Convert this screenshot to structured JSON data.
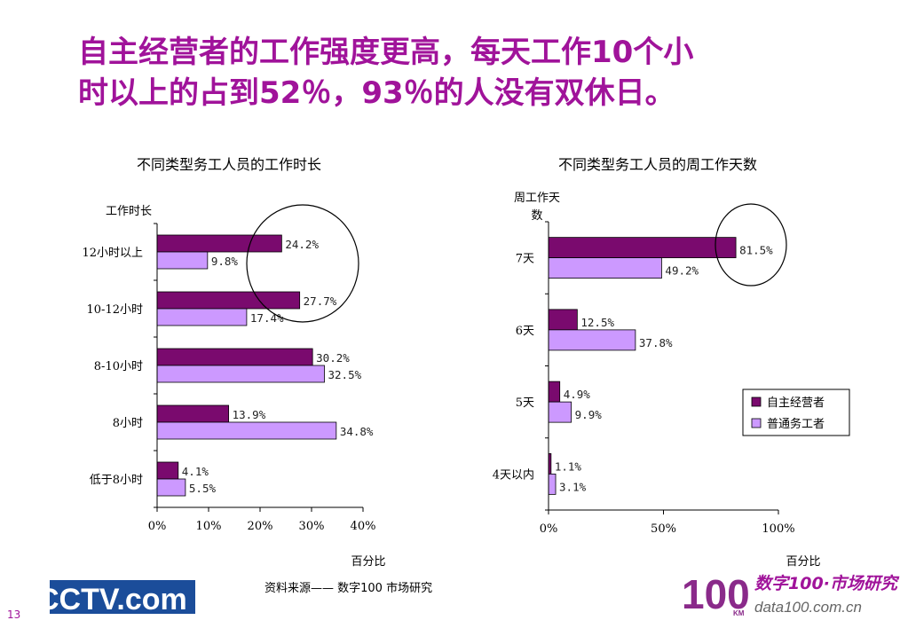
{
  "slide": {
    "title_line1": "自主经营者的工作强度更高，每天工作10个小",
    "title_line2": "时以上的占到52％，93％的人没有双休日。",
    "source_text": "资料来源——  数字100   市场研究",
    "page_number": "13",
    "accent_color": "#a0139a"
  },
  "logos": {
    "cctv_text": "CCTV.com",
    "data100_brand": "数字100·市场研究",
    "data100_num": "100",
    "data100_km": "KM",
    "data100_url": "data100.com.cn"
  },
  "chart_data": [
    {
      "type": "bar",
      "orientation": "horizontal",
      "title": "不同类型务工人员的工作时长",
      "ylabel": "工作时长",
      "xlabel": "百分比",
      "categories": [
        "12小时以上",
        "10-12小时",
        "8-10小时",
        "8小时",
        "低于8小时"
      ],
      "series": [
        {
          "name": "自主经营者",
          "color": "#7a0a6e",
          "values": [
            24.2,
            27.7,
            30.2,
            13.9,
            4.1
          ],
          "labels": [
            "24.2%",
            "27.7%",
            "30.2%",
            "13.9%",
            "4.1%"
          ]
        },
        {
          "name": "普通务工者",
          "color": "#cc99ff",
          "values": [
            9.8,
            17.4,
            32.5,
            34.8,
            5.5
          ],
          "labels": [
            "9.8%",
            "17.4%",
            "32.5%",
            "34.8%",
            "5.5%"
          ]
        }
      ],
      "xlim": [
        0,
        40
      ],
      "xticks": [
        "0%",
        "10%",
        "20%",
        "30%",
        "40%"
      ],
      "xtick_values": [
        0,
        10,
        20,
        30,
        40
      ],
      "highlight": {
        "category": "12小时以上",
        "shape": "circle"
      }
    },
    {
      "type": "bar",
      "orientation": "horizontal",
      "title": "不同类型务工人员的周工作天数",
      "ylabel": "周工作天数",
      "ylabel_lines": [
        "周工作天",
        "数"
      ],
      "xlabel": "百分比",
      "categories": [
        "7天",
        "6天",
        "5天",
        "4天以内"
      ],
      "series": [
        {
          "name": "自主经营者",
          "color": "#7a0a6e",
          "values": [
            81.5,
            12.5,
            4.9,
            1.1
          ],
          "labels": [
            "81.5%",
            "12.5%",
            "4.9%",
            "1.1%"
          ]
        },
        {
          "name": "普通务工者",
          "color": "#cc99ff",
          "values": [
            49.2,
            37.8,
            9.9,
            3.1
          ],
          "labels": [
            "49.2%",
            "37.8%",
            "9.9%",
            "3.1%"
          ]
        }
      ],
      "xlim": [
        0,
        100
      ],
      "xticks": [
        "0%",
        "50%",
        "100%"
      ],
      "xtick_values": [
        0,
        50,
        100
      ],
      "legend": {
        "placement": "right",
        "entries": [
          "自主经营者",
          "普通务工者"
        ]
      },
      "highlight": {
        "category": "7天",
        "shape": "circle"
      }
    }
  ]
}
